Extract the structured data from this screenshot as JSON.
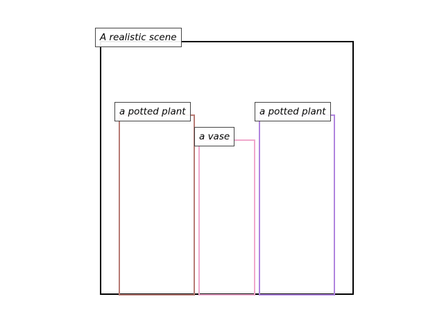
{
  "scene": {
    "title": "A realistic scene"
  },
  "objects": [
    {
      "label": "a potted plant",
      "color": "#b77a74"
    },
    {
      "label": "a vase",
      "color": "#f0a8cc"
    },
    {
      "label": "a potted plant",
      "color": "#b084de"
    }
  ]
}
